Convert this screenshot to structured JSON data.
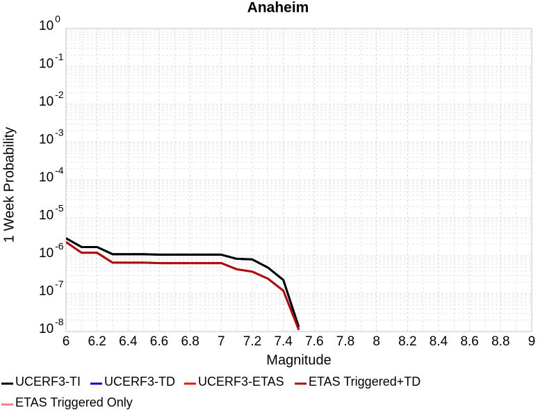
{
  "chart_data": {
    "type": "line",
    "title": "Anaheim",
    "xlabel": "Magnitude",
    "ylabel": "1 Week Probability",
    "log_y": true,
    "grid": true,
    "x": [
      6.0,
      6.1,
      6.2,
      6.3,
      6.4,
      6.5,
      6.6,
      6.7,
      6.8,
      6.9,
      7.0,
      7.1,
      7.2,
      7.3,
      7.4,
      7.5
    ],
    "series": [
      {
        "name": "UCERF3-TI",
        "color": "#000000",
        "values": [
          2.9e-06,
          1.7e-06,
          1.7e-06,
          1.1e-06,
          1.1e-06,
          1.1e-06,
          1.07e-06,
          1.07e-06,
          1.07e-06,
          1.07e-06,
          1.07e-06,
          8.3e-07,
          8e-07,
          4.9e-07,
          2.3e-07,
          1.3e-08
        ]
      },
      {
        "name": "UCERF3-TD",
        "color": "#0000cc",
        "values": [
          2.9e-06,
          1.7e-06,
          1.7e-06,
          1.1e-06,
          1.1e-06,
          1.1e-06,
          1.07e-06,
          1.07e-06,
          1.07e-06,
          1.07e-06,
          1.07e-06,
          8.3e-07,
          8e-07,
          4.9e-07,
          2.3e-07,
          1.3e-08
        ]
      },
      {
        "name": "UCERF3-ETAS",
        "color": "#ee1111",
        "values": [
          2.3e-06,
          1.2e-06,
          1.2e-06,
          6.6e-07,
          6.6e-07,
          6.6e-07,
          6.4e-07,
          6.4e-07,
          6.4e-07,
          6.4e-07,
          6.4e-07,
          4.4e-07,
          3.8e-07,
          2.5e-07,
          1.2e-07,
          1.1e-08
        ]
      },
      {
        "name": "ETAS Triggered+TD",
        "color": "#aa0f0f",
        "values": [
          2.3e-06,
          1.2e-06,
          1.2e-06,
          6.6e-07,
          6.6e-07,
          6.6e-07,
          6.4e-07,
          6.4e-07,
          6.4e-07,
          6.4e-07,
          6.4e-07,
          4.4e-07,
          3.8e-07,
          2.5e-07,
          1.2e-07,
          1.1e-08
        ]
      },
      {
        "name": "ETAS Triggered Only",
        "color": "#f08080",
        "values": [
          null,
          null,
          null,
          null,
          null,
          null,
          null,
          null,
          null,
          null,
          null,
          null,
          null,
          null,
          null,
          null
        ]
      }
    ],
    "xlim": [
      6,
      9
    ],
    "xticks": [
      6,
      6.2,
      6.4,
      6.6,
      6.8,
      7,
      7.2,
      7.4,
      7.6,
      7.8,
      8,
      8.2,
      8.4,
      8.6,
      8.8,
      9
    ],
    "ylim": [
      1e-08,
      1
    ],
    "yticks": [
      {
        "value": 1,
        "label": "10",
        "exponent": "0"
      },
      {
        "value": 0.1,
        "label": "10",
        "exponent": "-1"
      },
      {
        "value": 0.01,
        "label": "10",
        "exponent": "-2"
      },
      {
        "value": 0.001,
        "label": "10",
        "exponent": "-3"
      },
      {
        "value": 0.0001,
        "label": "10",
        "exponent": "-4"
      },
      {
        "value": 1e-05,
        "label": "10",
        "exponent": "-5"
      },
      {
        "value": 1e-06,
        "label": "10",
        "exponent": "-6"
      },
      {
        "value": 1e-07,
        "label": "10",
        "exponent": "-7"
      },
      {
        "value": 1e-08,
        "label": "10",
        "exponent": "-8"
      }
    ]
  }
}
